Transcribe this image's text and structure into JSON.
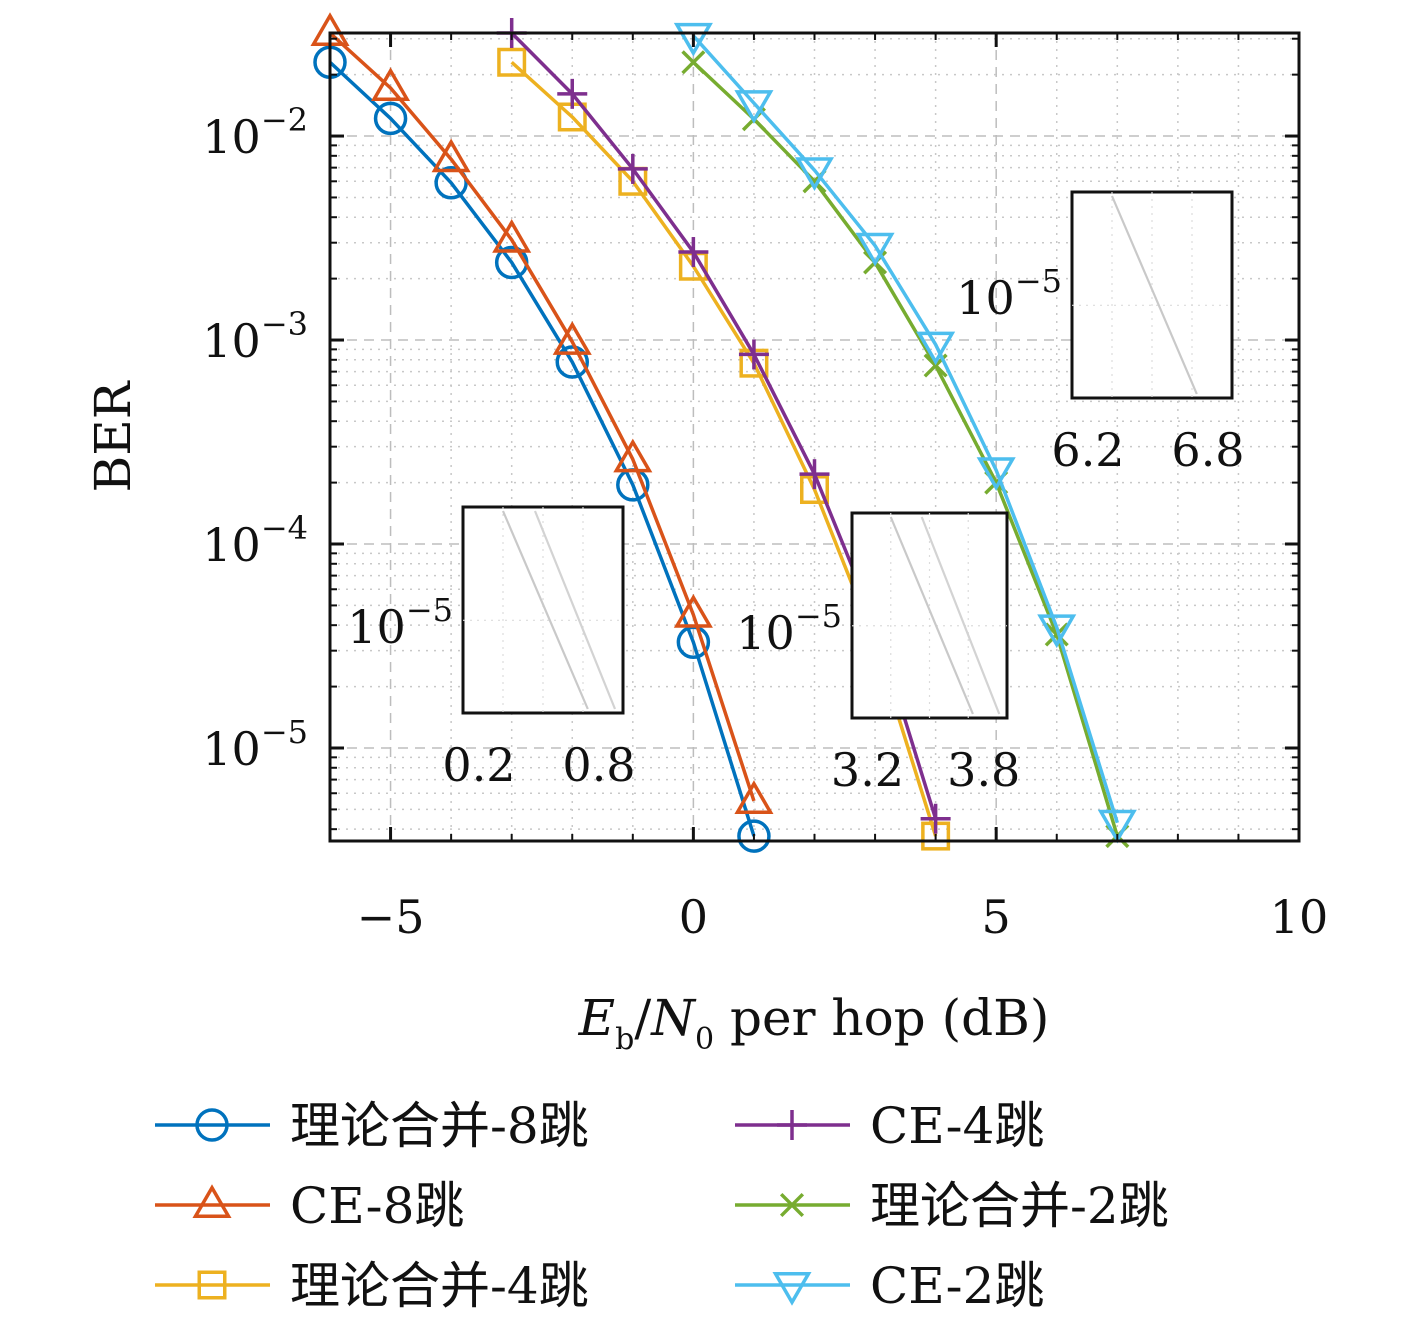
{
  "chart_data": {
    "type": "line",
    "title": "",
    "xlabel": "E_b/N_0 per hop (dB)",
    "xlabel_parts": {
      "e": "E",
      "e_sub": "b",
      "slash": "/",
      "n": "N",
      "n_sub": "0",
      "rest": " per hop (dB)"
    },
    "ylabel": "BER",
    "xlim": [
      -6,
      10
    ],
    "ylim": [
      3.5e-06,
      0.032
    ],
    "yscale": "log",
    "xticks": [
      -5,
      0,
      5,
      10
    ],
    "xtick_labels": [
      "−5",
      "0",
      "5",
      "10"
    ],
    "yticks": [
      0.01,
      0.001,
      0.0001,
      1e-05
    ],
    "ytick_labels": [
      {
        "base": "10",
        "exp": "−2"
      },
      {
        "base": "10",
        "exp": "−3"
      },
      {
        "base": "10",
        "exp": "−4"
      },
      {
        "base": "10",
        "exp": "−5"
      }
    ],
    "grid": true,
    "legend_position": "below",
    "series": [
      {
        "name": "理论合并-8跳",
        "color": "#0072BD",
        "marker": "circle",
        "x": [
          -6,
          -5,
          -4,
          -3,
          -2,
          -1,
          0,
          1
        ],
        "y": [
          0.023,
          0.0122,
          0.0059,
          0.0024,
          0.00078,
          0.000195,
          3.3e-05,
          3.7e-06
        ]
      },
      {
        "name": "CE-8跳",
        "color": "#D95319",
        "marker": "triangle-up",
        "x": [
          -6,
          -5,
          -4,
          -3,
          -2,
          -1,
          0,
          1
        ],
        "y": [
          0.032,
          0.0172,
          0.0077,
          0.0031,
          0.00098,
          0.00026,
          4.5e-05,
          5.5e-06
        ]
      },
      {
        "name": "理论合并-4跳",
        "color": "#EDB120",
        "marker": "square",
        "x": [
          -3,
          -2,
          -1,
          0,
          1,
          2,
          3,
          4
        ],
        "y": [
          0.023,
          0.0124,
          0.006,
          0.0023,
          0.00077,
          0.000185,
          3.3e-05,
          3.7e-06
        ]
      },
      {
        "name": "CE-4跳",
        "color": "#7E2F8E",
        "marker": "plus",
        "x": [
          -3,
          -2,
          -1,
          0,
          1,
          2,
          3,
          4
        ],
        "y": [
          0.032,
          0.0161,
          0.0069,
          0.0027,
          0.00085,
          0.00022,
          4.1e-05,
          4.5e-06
        ]
      },
      {
        "name": "理论合并-2跳",
        "color": "#77AC30",
        "marker": "x",
        "x": [
          0,
          1,
          2,
          3,
          4,
          5,
          6,
          7
        ],
        "y": [
          0.023,
          0.0121,
          0.006,
          0.0024,
          0.00075,
          0.0002,
          3.6e-05,
          3.7e-06
        ]
      },
      {
        "name": "CE-2跳",
        "color": "#4DBEEE",
        "marker": "triangle-down",
        "x": [
          0,
          1,
          2,
          3,
          4,
          5,
          6,
          7
        ],
        "y": [
          0.031,
          0.0145,
          0.0068,
          0.0029,
          0.00095,
          0.00023,
          3.9e-05,
          4.3e-06
        ]
      }
    ],
    "insets": [
      {
        "xrange": [
          0.2,
          0.8
        ],
        "xtick_labels": [
          "0.2",
          "0.8"
        ],
        "ytick_label": {
          "base": "10",
          "exp": "−5"
        }
      },
      {
        "xrange": [
          3.2,
          3.8
        ],
        "xtick_labels": [
          "3.2",
          "3.8"
        ],
        "ytick_label": {
          "base": "10",
          "exp": "−5"
        }
      },
      {
        "xrange": [
          6.2,
          6.8
        ],
        "xtick_labels": [
          "6.2",
          "6.8"
        ],
        "ytick_label": {
          "base": "10",
          "exp": "−5"
        }
      }
    ]
  }
}
